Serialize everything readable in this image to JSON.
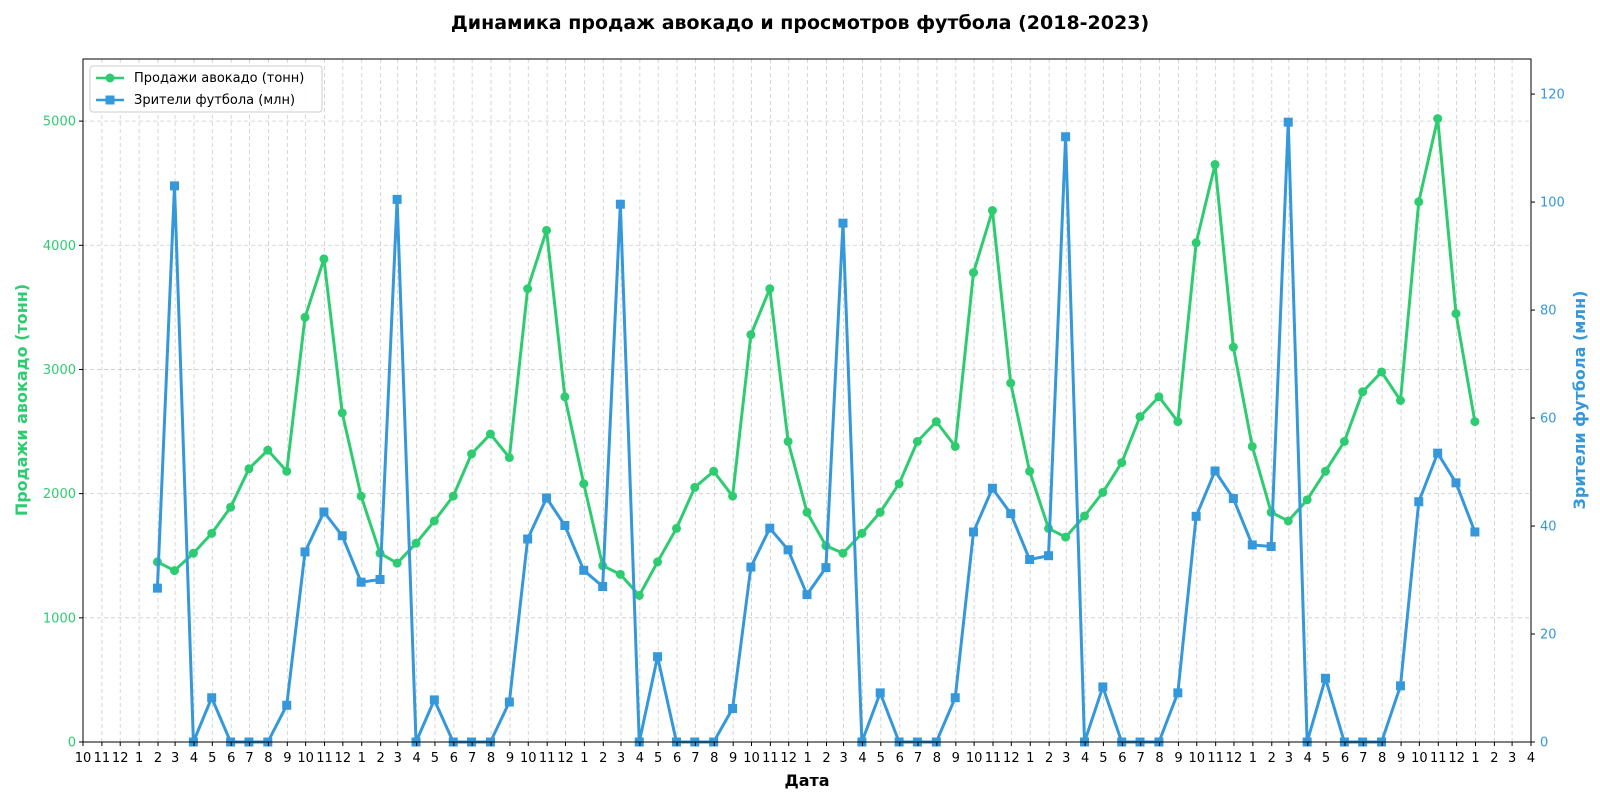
{
  "chart_data": {
    "type": "line",
    "title": "Динамика продаж авокадо и просмотров футбола (2018-2023)",
    "xlabel": "Дата",
    "x_tick_labels": [
      "10",
      "11",
      "12",
      "1",
      "2",
      "3",
      "4",
      "5",
      "6",
      "7",
      "8",
      "9",
      "10",
      "11",
      "12",
      "1",
      "2",
      "3",
      "4",
      "5",
      "6",
      "7",
      "8",
      "9",
      "10",
      "11",
      "12",
      "1",
      "2",
      "3",
      "4",
      "5",
      "6",
      "7",
      "8",
      "9",
      "10",
      "11",
      "12",
      "1",
      "2",
      "3",
      "4",
      "5",
      "6",
      "7",
      "8",
      "9",
      "10",
      "11",
      "12",
      "1",
      "2",
      "3",
      "4",
      "5",
      "6",
      "7",
      "8",
      "9",
      "10",
      "11",
      "12",
      "1",
      "2",
      "3",
      "4",
      "5",
      "6",
      "7",
      "8",
      "9",
      "10",
      "11",
      "12",
      "1",
      "2",
      "3",
      "4"
    ],
    "x_tick_start": "2017-10",
    "x_tick_end": "2024-04",
    "x": [
      "2018-01-31",
      "2018-02-28",
      "2018-03-31",
      "2018-04-30",
      "2018-05-31",
      "2018-06-30",
      "2018-07-31",
      "2018-08-31",
      "2018-09-30",
      "2018-10-31",
      "2018-11-30",
      "2018-12-31",
      "2019-01-31",
      "2019-02-28",
      "2019-03-31",
      "2019-04-30",
      "2019-05-31",
      "2019-06-30",
      "2019-07-31",
      "2019-08-31",
      "2019-09-30",
      "2019-10-31",
      "2019-11-30",
      "2019-12-31",
      "2020-01-31",
      "2020-02-29",
      "2020-03-31",
      "2020-04-30",
      "2020-05-31",
      "2020-06-30",
      "2020-07-31",
      "2020-08-31",
      "2020-09-30",
      "2020-10-31",
      "2020-11-30",
      "2020-12-31",
      "2021-01-31",
      "2021-02-28",
      "2021-03-31",
      "2021-04-30",
      "2021-05-31",
      "2021-06-30",
      "2021-07-31",
      "2021-08-31",
      "2021-09-30",
      "2021-10-31",
      "2021-11-30",
      "2021-12-31",
      "2022-01-31",
      "2022-02-28",
      "2022-03-31",
      "2022-04-30",
      "2022-05-31",
      "2022-06-30",
      "2022-07-31",
      "2022-08-31",
      "2022-09-30",
      "2022-10-31",
      "2022-11-30",
      "2022-12-31",
      "2023-01-31",
      "2023-02-28",
      "2023-03-31",
      "2023-04-30",
      "2023-05-31",
      "2023-06-30",
      "2023-07-31",
      "2023-08-31",
      "2023-09-30",
      "2023-10-31",
      "2023-11-30",
      "2023-12-31"
    ],
    "series": [
      {
        "name": "Продажи авокадо (тонн)",
        "axis": "left",
        "color": "#2ecc71",
        "marker": "circle",
        "values": [
          1450,
          1380,
          1520,
          1680,
          1890,
          2200,
          2350,
          2180,
          3420,
          3890,
          2650,
          1980,
          1520,
          1440,
          1600,
          1780,
          1980,
          2320,
          2480,
          2290,
          3650,
          4120,
          2780,
          2080,
          1420,
          1350,
          1180,
          1450,
          1720,
          2050,
          2180,
          1980,
          3280,
          3650,
          2420,
          1850,
          1580,
          1520,
          1680,
          1850,
          2080,
          2420,
          2580,
          2380,
          3780,
          4280,
          2890,
          2180,
          1720,
          1650,
          1820,
          2010,
          2250,
          2620,
          2780,
          2580,
          4020,
          4650,
          3180,
          2380,
          1850,
          1780,
          1950,
          2180,
          2420,
          2820,
          2980,
          2750,
          4350,
          5020,
          3450,
          2580
        ]
      },
      {
        "name": "Зрители футбола (млн)",
        "axis": "right",
        "color": "#3498db",
        "marker": "square",
        "values": [
          28.5,
          103.0,
          0.0,
          8.2,
          0.0,
          0.0,
          0.0,
          6.8,
          35.2,
          42.6,
          38.2,
          29.6,
          30.1,
          100.5,
          0.0,
          7.8,
          0.0,
          0.0,
          0.0,
          7.4,
          37.6,
          45.2,
          40.1,
          31.8,
          28.8,
          99.6,
          0.0,
          15.8,
          0.0,
          0.0,
          0.0,
          6.2,
          32.4,
          39.6,
          35.6,
          27.3,
          32.3,
          96.1,
          0.0,
          9.1,
          0.0,
          0.0,
          0.0,
          8.2,
          38.9,
          47.0,
          42.3,
          33.8,
          34.5,
          112.1,
          0.0,
          10.2,
          0.0,
          0.0,
          0.0,
          9.1,
          41.8,
          50.2,
          45.1,
          36.5,
          36.2,
          114.8,
          0.0,
          11.8,
          0.0,
          0.0,
          0.0,
          10.4,
          44.5,
          53.5,
          48.0,
          38.9
        ]
      }
    ],
    "y_left": {
      "label": "Продажи авокадо (тонн)",
      "lim": [
        0,
        5500
      ],
      "ticks": [
        0,
        1000,
        2000,
        3000,
        4000,
        5000
      ],
      "color": "#2ecc71"
    },
    "y_right": {
      "label": "Зрители футбола (млн)",
      "lim": [
        0,
        126.5
      ],
      "ticks": [
        0,
        20,
        40,
        60,
        80,
        100,
        120
      ],
      "color": "#3498db"
    },
    "grid": true,
    "legend_position": "top-left"
  }
}
